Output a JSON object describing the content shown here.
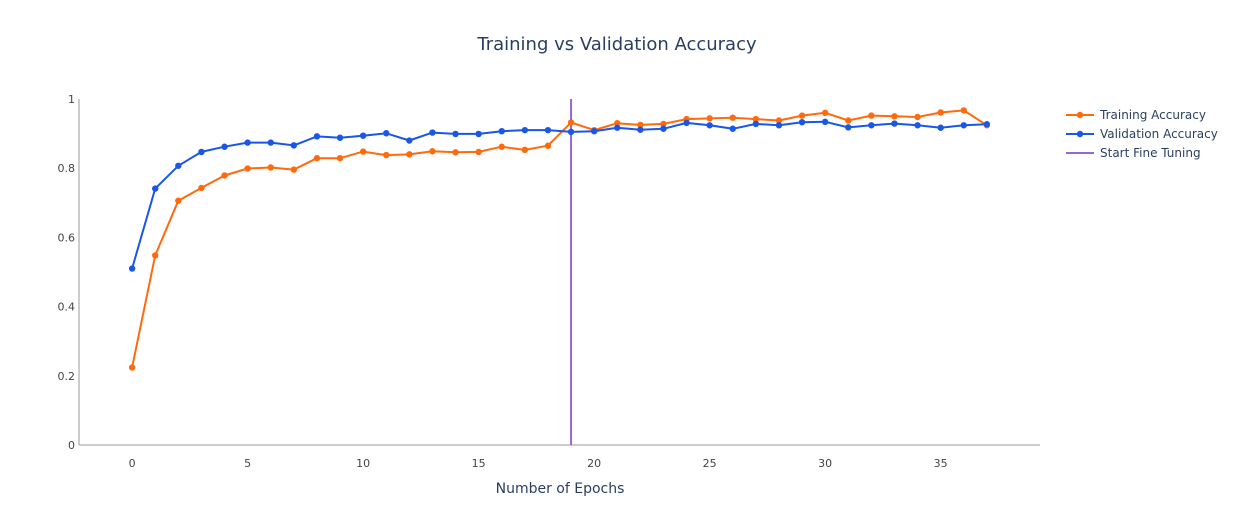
{
  "chart_data": {
    "type": "line",
    "title": "Training vs Validation Accuracy",
    "xlabel": "Number of Epochs",
    "ylabel": "",
    "xlim": [
      -2.3,
      39.3
    ],
    "ylim": [
      0,
      1
    ],
    "x_ticks": [
      0,
      5,
      10,
      15,
      20,
      25,
      30,
      35
    ],
    "y_ticks": [
      0,
      0.2,
      0.4,
      0.6,
      0.8,
      1
    ],
    "x_tick_labels": [
      "0",
      "5",
      "10",
      "15",
      "20",
      "25",
      "30",
      "35"
    ],
    "y_tick_labels": [
      "0",
      "0.2",
      "0.4",
      "0.6",
      "0.8",
      "1"
    ],
    "grid": false,
    "legend_position": "top-right",
    "x": [
      0,
      1,
      2,
      3,
      4,
      5,
      6,
      7,
      8,
      9,
      10,
      11,
      12,
      13,
      14,
      15,
      16,
      17,
      18,
      19,
      20,
      21,
      22,
      23,
      24,
      25,
      26,
      27,
      28,
      29,
      30,
      31,
      32,
      33,
      34,
      35,
      36,
      37
    ],
    "series": [
      {
        "name": "Training Accuracy",
        "color": "#ff6a0d",
        "values": [
          0.224,
          0.548,
          0.706,
          0.743,
          0.779,
          0.799,
          0.802,
          0.796,
          0.829,
          0.829,
          0.848,
          0.838,
          0.84,
          0.849,
          0.846,
          0.847,
          0.862,
          0.853,
          0.865,
          0.932,
          0.91,
          0.93,
          0.925,
          0.928,
          0.942,
          0.944,
          0.946,
          0.942,
          0.938,
          0.952,
          0.96,
          0.938,
          0.952,
          0.95,
          0.948,
          0.961,
          0.967,
          0.924
        ]
      },
      {
        "name": "Validation Accuracy",
        "color": "#1a56e8",
        "values": [
          0.51,
          0.741,
          0.807,
          0.847,
          0.862,
          0.874,
          0.874,
          0.866,
          0.892,
          0.888,
          0.894,
          0.901,
          0.88,
          0.903,
          0.899,
          0.899,
          0.907,
          0.91,
          0.91,
          0.905,
          0.907,
          0.917,
          0.911,
          0.914,
          0.931,
          0.924,
          0.914,
          0.928,
          0.924,
          0.933,
          0.934,
          0.918,
          0.924,
          0.929,
          0.924,
          0.917,
          0.924,
          0.927
        ]
      }
    ],
    "vertical_line": {
      "name": "Start Fine Tuning",
      "x": 19,
      "color": "#9467d6"
    }
  }
}
